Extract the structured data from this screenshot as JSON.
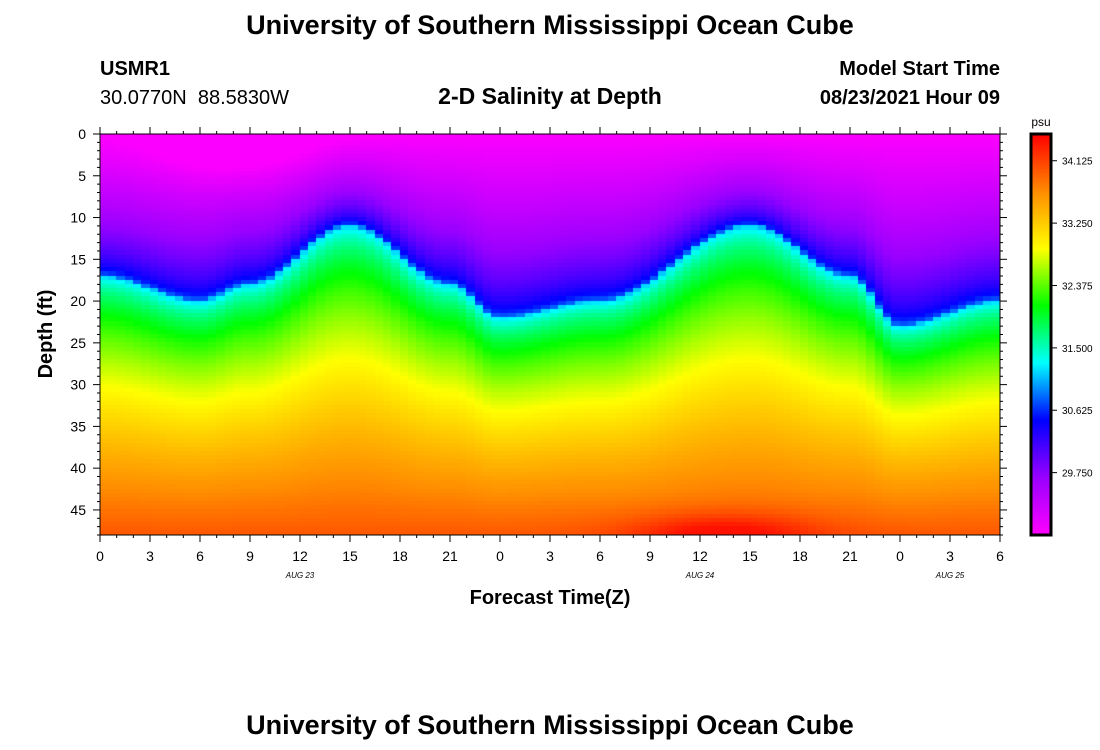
{
  "header": {
    "title": "University of Southern Mississippi Ocean Cube",
    "station_id": "USMR1",
    "coordinates": "30.0770N  88.5830W",
    "plot_title": "2-D Salinity at Depth",
    "model_start_label": "Model Start Time",
    "model_start_value": "08/23/2021 Hour 09"
  },
  "footer": {
    "title": "University of Southern Mississippi Ocean Cube"
  },
  "chart_data": {
    "type": "heatmap",
    "title": "2-D Salinity at Depth",
    "xlabel": "Forecast Time(Z)",
    "ylabel": "Depth (ft)",
    "x_hours_range": [
      0,
      54
    ],
    "x_tick_hours": [
      0,
      3,
      6,
      9,
      12,
      15,
      18,
      21,
      24,
      27,
      30,
      33,
      36,
      39,
      42,
      45,
      48,
      51,
      54
    ],
    "x_tick_labels": [
      "0",
      "3",
      "6",
      "9",
      "12",
      "15",
      "18",
      "21",
      "0",
      "3",
      "6",
      "9",
      "12",
      "15",
      "18",
      "21",
      "0",
      "3",
      "6"
    ],
    "date_labels": [
      {
        "hour": 12,
        "label": "AUG 23"
      },
      {
        "hour": 36,
        "label": "AUG 24"
      },
      {
        "hour": 51,
        "label": "AUG 25"
      }
    ],
    "ylim": [
      0,
      48
    ],
    "y_tick_values": [
      0,
      5,
      10,
      15,
      20,
      25,
      30,
      35,
      40,
      45
    ],
    "y_tick_labels": [
      "0",
      "5",
      "10",
      "15",
      "20",
      "25",
      "30",
      "35",
      "40",
      "45"
    ],
    "colorbar": {
      "unit": "psu",
      "range": [
        28.875,
        34.5
      ],
      "tick_values": [
        29.75,
        30.625,
        31.5,
        32.375,
        33.25,
        34.125
      ],
      "tick_labels": [
        "29.750",
        "30.625",
        "31.500",
        "32.375",
        "33.250",
        "34.125"
      ],
      "colors": [
        "#ff00ff",
        "#9900ff",
        "#0000ff",
        "#00ffff",
        "#00ff00",
        "#ffff00",
        "#ff8c00",
        "#ff0000"
      ]
    },
    "field": {
      "description": "Halocline depth (ft) oscillating with time; fresher water above, saltier below",
      "halocline_depth_ft_by_hour": [
        {
          "hour": 0,
          "depth": 17
        },
        {
          "hour": 6,
          "depth": 20
        },
        {
          "hour": 9,
          "depth": 18
        },
        {
          "hour": 15,
          "depth": 11
        },
        {
          "hour": 21,
          "depth": 18
        },
        {
          "hour": 24,
          "depth": 22
        },
        {
          "hour": 30,
          "depth": 20
        },
        {
          "hour": 39,
          "depth": 11
        },
        {
          "hour": 45,
          "depth": 17
        },
        {
          "hour": 48,
          "depth": 23
        },
        {
          "hour": 54,
          "depth": 20
        }
      ],
      "surface_min_psu": 28.9,
      "bottom_max_psu": 34.4
    }
  }
}
